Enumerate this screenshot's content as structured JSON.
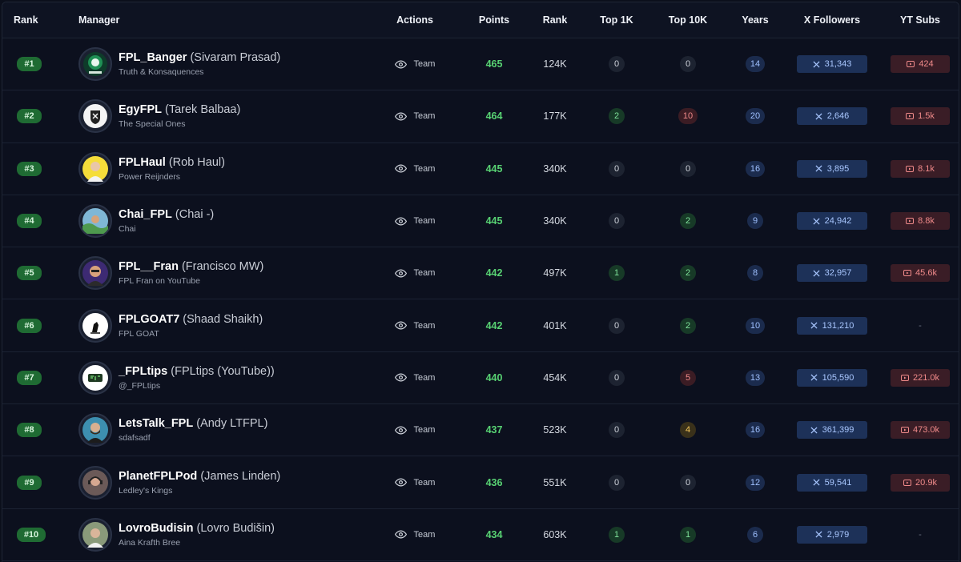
{
  "headers": {
    "rank": "Rank",
    "manager": "Manager",
    "actions": "Actions",
    "points": "Points",
    "global_rank": "Rank",
    "top1k": "Top 1K",
    "top10k": "Top 10K",
    "years": "Years",
    "x_followers": "X Followers",
    "yt_subs": "YT Subs"
  },
  "team_label": "Team",
  "empty_value": "-",
  "colors": {
    "rank_badge": "#1f6b33",
    "points": "#58d273",
    "x_pill": "#1d3158",
    "yt_pill": "#3a1d26"
  },
  "rows": [
    {
      "rank": "#1",
      "name": "FPL_Banger",
      "real": "(Sivaram Prasad)",
      "team": "Truth & Konsaquences",
      "avatar": "banger-logo-icon",
      "points": "465",
      "grank": "124K",
      "top1k": "0",
      "top1k_tone": "gray",
      "top10k": "0",
      "top10k_tone": "gray",
      "years": "14",
      "x": "31,343",
      "yt": "424"
    },
    {
      "rank": "#2",
      "name": "EgyFPL",
      "real": "(Tarek Balbaa)",
      "team": "The Special Ones",
      "avatar": "crest-logo-icon",
      "points": "464",
      "grank": "177K",
      "top1k": "2",
      "top1k_tone": "green",
      "top10k": "10",
      "top10k_tone": "red",
      "years": "20",
      "x": "2,646",
      "yt": "1.5k"
    },
    {
      "rank": "#3",
      "name": "FPLHaul",
      "real": "(Rob Haul)",
      "team": "Power Reijnders",
      "avatar": "person-avatar-icon",
      "points": "445",
      "grank": "340K",
      "top1k": "0",
      "top1k_tone": "gray",
      "top10k": "0",
      "top10k_tone": "gray",
      "years": "16",
      "x": "3,895",
      "yt": "8.1k"
    },
    {
      "rank": "#4",
      "name": "Chai_FPL",
      "real": "(Chai -)",
      "team": "Chai",
      "avatar": "landscape-avatar-icon",
      "points": "445",
      "grank": "340K",
      "top1k": "0",
      "top1k_tone": "gray",
      "top10k": "2",
      "top10k_tone": "green",
      "years": "9",
      "x": "24,942",
      "yt": "8.8k"
    },
    {
      "rank": "#5",
      "name": "FPL__Fran",
      "real": "(Francisco MW)",
      "team": "FPL Fran on YouTube",
      "avatar": "cartoon-avatar-icon",
      "points": "442",
      "grank": "497K",
      "top1k": "1",
      "top1k_tone": "green",
      "top10k": "2",
      "top10k_tone": "green",
      "years": "8",
      "x": "32,957",
      "yt": "45.6k"
    },
    {
      "rank": "#6",
      "name": "FPLGOAT7",
      "real": "(Shaad Shaikh)",
      "team": "FPL GOAT",
      "avatar": "goat-logo-icon",
      "points": "442",
      "grank": "401K",
      "top1k": "0",
      "top1k_tone": "gray",
      "top10k": "2",
      "top10k_tone": "green",
      "years": "10",
      "x": "131,210",
      "yt": ""
    },
    {
      "rank": "#7",
      "name": "_FPLtips",
      "real": "(FPLtips (YouTube))",
      "team": "@_FPLtips",
      "avatar": "fpl-logo-icon",
      "points": "440",
      "grank": "454K",
      "top1k": "0",
      "top1k_tone": "gray",
      "top10k": "5",
      "top10k_tone": "red",
      "years": "13",
      "x": "105,590",
      "yt": "221.0k"
    },
    {
      "rank": "#8",
      "name": "LetsTalk_FPL",
      "real": "(Andy LTFPL)",
      "team": "sdafsadf",
      "avatar": "bearded-avatar-icon",
      "points": "437",
      "grank": "523K",
      "top1k": "0",
      "top1k_tone": "gray",
      "top10k": "4",
      "top10k_tone": "amber",
      "years": "16",
      "x": "361,399",
      "yt": "473.0k"
    },
    {
      "rank": "#9",
      "name": "PlanetFPLPod",
      "real": "(James Linden)",
      "team": "Ledley's Kings",
      "avatar": "headset-avatar-icon",
      "points": "436",
      "grank": "551K",
      "top1k": "0",
      "top1k_tone": "gray",
      "top10k": "0",
      "top10k_tone": "gray",
      "years": "12",
      "x": "59,541",
      "yt": "20.9k"
    },
    {
      "rank": "#10",
      "name": "LovroBudisin",
      "real": "(Lovro Budišin)",
      "team": "Aina Krafth Bree",
      "avatar": "outdoor-avatar-icon",
      "points": "434",
      "grank": "603K",
      "top1k": "1",
      "top1k_tone": "green",
      "top10k": "1",
      "top10k_tone": "green",
      "years": "6",
      "x": "2,979",
      "yt": ""
    }
  ]
}
